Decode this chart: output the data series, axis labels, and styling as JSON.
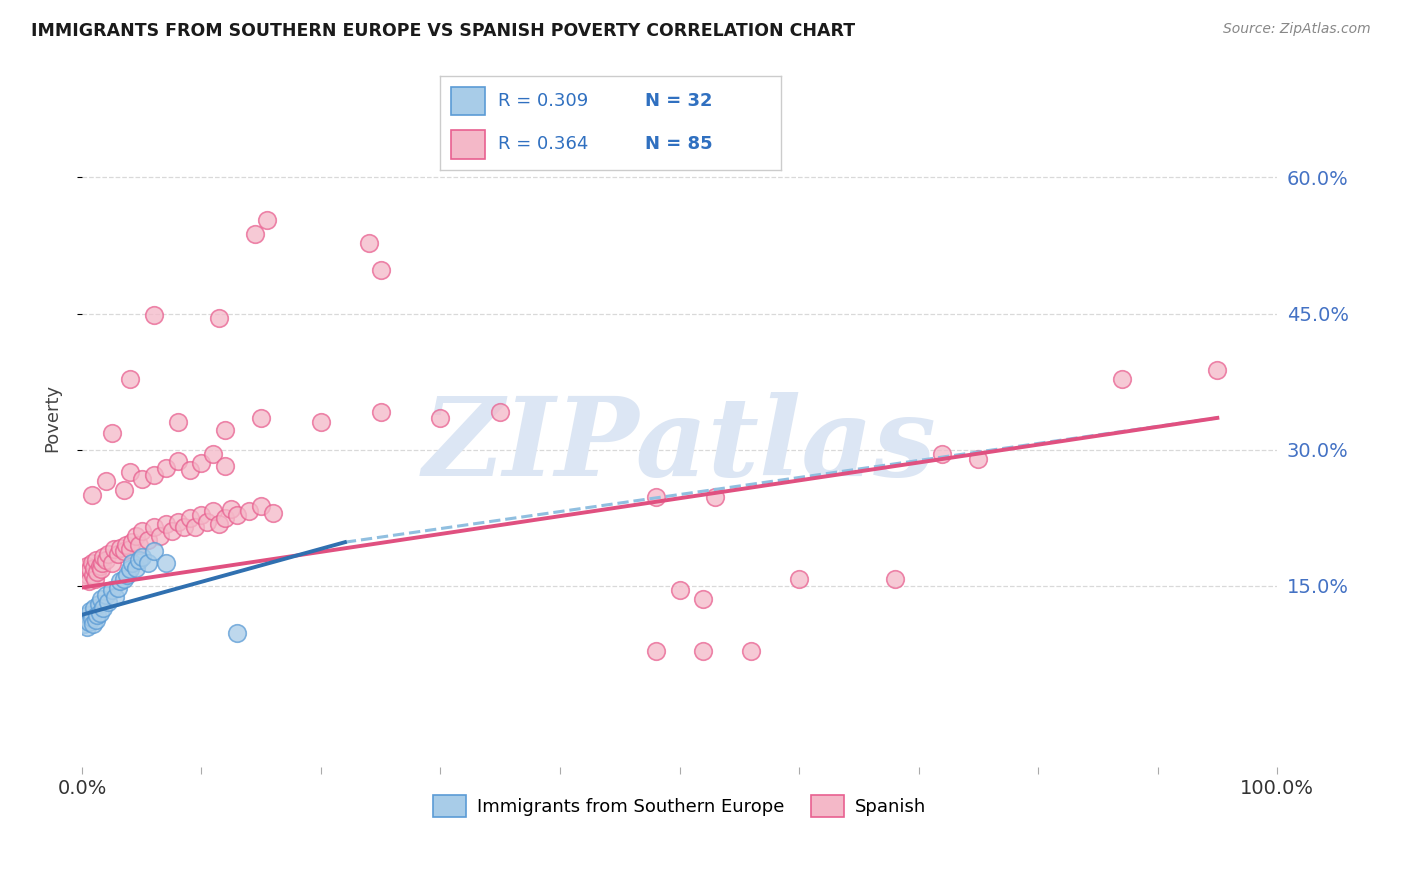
{
  "title": "IMMIGRANTS FROM SOUTHERN EUROPE VS SPANISH POVERTY CORRELATION CHART",
  "source": "Source: ZipAtlas.com",
  "ylabel": "Poverty",
  "xlim": [
    0,
    1.0
  ],
  "ylim": [
    -0.05,
    0.72
  ],
  "yticks": [
    0.15,
    0.3,
    0.45,
    0.6
  ],
  "ytick_labels": [
    "15.0%",
    "30.0%",
    "45.0%",
    "60.0%"
  ],
  "xtick_positions": [
    0.0,
    0.1,
    0.2,
    0.3,
    0.4,
    0.5,
    0.6,
    0.7,
    0.8,
    0.9,
    1.0
  ],
  "blue_scatter": [
    [
      0.002,
      0.108
    ],
    [
      0.003,
      0.113
    ],
    [
      0.004,
      0.105
    ],
    [
      0.005,
      0.118
    ],
    [
      0.006,
      0.11
    ],
    [
      0.007,
      0.122
    ],
    [
      0.008,
      0.115
    ],
    [
      0.009,
      0.108
    ],
    [
      0.01,
      0.125
    ],
    [
      0.012,
      0.112
    ],
    [
      0.013,
      0.118
    ],
    [
      0.014,
      0.13
    ],
    [
      0.015,
      0.12
    ],
    [
      0.016,
      0.135
    ],
    [
      0.018,
      0.125
    ],
    [
      0.02,
      0.14
    ],
    [
      0.022,
      0.132
    ],
    [
      0.025,
      0.145
    ],
    [
      0.028,
      0.138
    ],
    [
      0.03,
      0.148
    ],
    [
      0.032,
      0.155
    ],
    [
      0.035,
      0.158
    ],
    [
      0.038,
      0.162
    ],
    [
      0.04,
      0.168
    ],
    [
      0.042,
      0.175
    ],
    [
      0.045,
      0.17
    ],
    [
      0.048,
      0.178
    ],
    [
      0.05,
      0.182
    ],
    [
      0.055,
      0.175
    ],
    [
      0.06,
      0.188
    ],
    [
      0.07,
      0.175
    ],
    [
      0.13,
      0.098
    ]
  ],
  "pink_scatter": [
    [
      0.002,
      0.168
    ],
    [
      0.003,
      0.158
    ],
    [
      0.004,
      0.172
    ],
    [
      0.005,
      0.162
    ],
    [
      0.006,
      0.155
    ],
    [
      0.007,
      0.168
    ],
    [
      0.008,
      0.175
    ],
    [
      0.009,
      0.162
    ],
    [
      0.01,
      0.17
    ],
    [
      0.011,
      0.158
    ],
    [
      0.012,
      0.178
    ],
    [
      0.013,
      0.165
    ],
    [
      0.015,
      0.172
    ],
    [
      0.016,
      0.168
    ],
    [
      0.017,
      0.175
    ],
    [
      0.018,
      0.182
    ],
    [
      0.02,
      0.178
    ],
    [
      0.022,
      0.185
    ],
    [
      0.025,
      0.175
    ],
    [
      0.027,
      0.19
    ],
    [
      0.03,
      0.185
    ],
    [
      0.032,
      0.192
    ],
    [
      0.035,
      0.188
    ],
    [
      0.037,
      0.195
    ],
    [
      0.04,
      0.19
    ],
    [
      0.042,
      0.198
    ],
    [
      0.045,
      0.205
    ],
    [
      0.048,
      0.195
    ],
    [
      0.05,
      0.21
    ],
    [
      0.055,
      0.2
    ],
    [
      0.06,
      0.215
    ],
    [
      0.065,
      0.205
    ],
    [
      0.07,
      0.218
    ],
    [
      0.075,
      0.21
    ],
    [
      0.08,
      0.22
    ],
    [
      0.085,
      0.215
    ],
    [
      0.09,
      0.225
    ],
    [
      0.095,
      0.215
    ],
    [
      0.1,
      0.228
    ],
    [
      0.105,
      0.22
    ],
    [
      0.11,
      0.232
    ],
    [
      0.115,
      0.218
    ],
    [
      0.12,
      0.225
    ],
    [
      0.125,
      0.235
    ],
    [
      0.13,
      0.228
    ],
    [
      0.14,
      0.232
    ],
    [
      0.15,
      0.238
    ],
    [
      0.16,
      0.23
    ],
    [
      0.008,
      0.25
    ],
    [
      0.02,
      0.265
    ],
    [
      0.035,
      0.255
    ],
    [
      0.04,
      0.275
    ],
    [
      0.05,
      0.268
    ],
    [
      0.06,
      0.272
    ],
    [
      0.07,
      0.28
    ],
    [
      0.08,
      0.288
    ],
    [
      0.09,
      0.278
    ],
    [
      0.1,
      0.285
    ],
    [
      0.11,
      0.295
    ],
    [
      0.12,
      0.282
    ],
    [
      0.025,
      0.318
    ],
    [
      0.08,
      0.33
    ],
    [
      0.12,
      0.322
    ],
    [
      0.15,
      0.335
    ],
    [
      0.2,
      0.33
    ],
    [
      0.25,
      0.342
    ],
    [
      0.3,
      0.335
    ],
    [
      0.35,
      0.342
    ],
    [
      0.06,
      0.448
    ],
    [
      0.04,
      0.378
    ],
    [
      0.145,
      0.538
    ],
    [
      0.155,
      0.553
    ],
    [
      0.24,
      0.528
    ],
    [
      0.25,
      0.498
    ],
    [
      0.115,
      0.445
    ],
    [
      0.5,
      0.145
    ],
    [
      0.52,
      0.135
    ],
    [
      0.6,
      0.158
    ],
    [
      0.68,
      0.158
    ],
    [
      0.72,
      0.295
    ],
    [
      0.75,
      0.29
    ],
    [
      0.87,
      0.378
    ],
    [
      0.95,
      0.388
    ],
    [
      0.53,
      0.248
    ],
    [
      0.48,
      0.248
    ],
    [
      0.48,
      0.078
    ],
    [
      0.52,
      0.078
    ],
    [
      0.56,
      0.078
    ]
  ],
  "blue_line": {
    "x0": 0.0,
    "y0": 0.118,
    "x1": 0.22,
    "y1": 0.198
  },
  "blue_dash_line": {
    "x0": 0.22,
    "y0": 0.198,
    "x1": 0.95,
    "y1": 0.335
  },
  "pink_line": {
    "x0": 0.0,
    "y0": 0.148,
    "x1": 0.95,
    "y1": 0.335
  },
  "blue_dot_color": "#a8cce8",
  "pink_dot_color": "#f4b8c8",
  "blue_edge_color": "#5b9bd5",
  "pink_edge_color": "#e86090",
  "blue_line_color": "#3070b0",
  "pink_line_color": "#e05080",
  "blue_dash_color": "#90bfe0",
  "watermark_color": "#dce6f4",
  "background_color": "#ffffff",
  "grid_color": "#d0d0d0",
  "legend_text_color": "#3070c0",
  "right_tick_color": "#4472c4"
}
